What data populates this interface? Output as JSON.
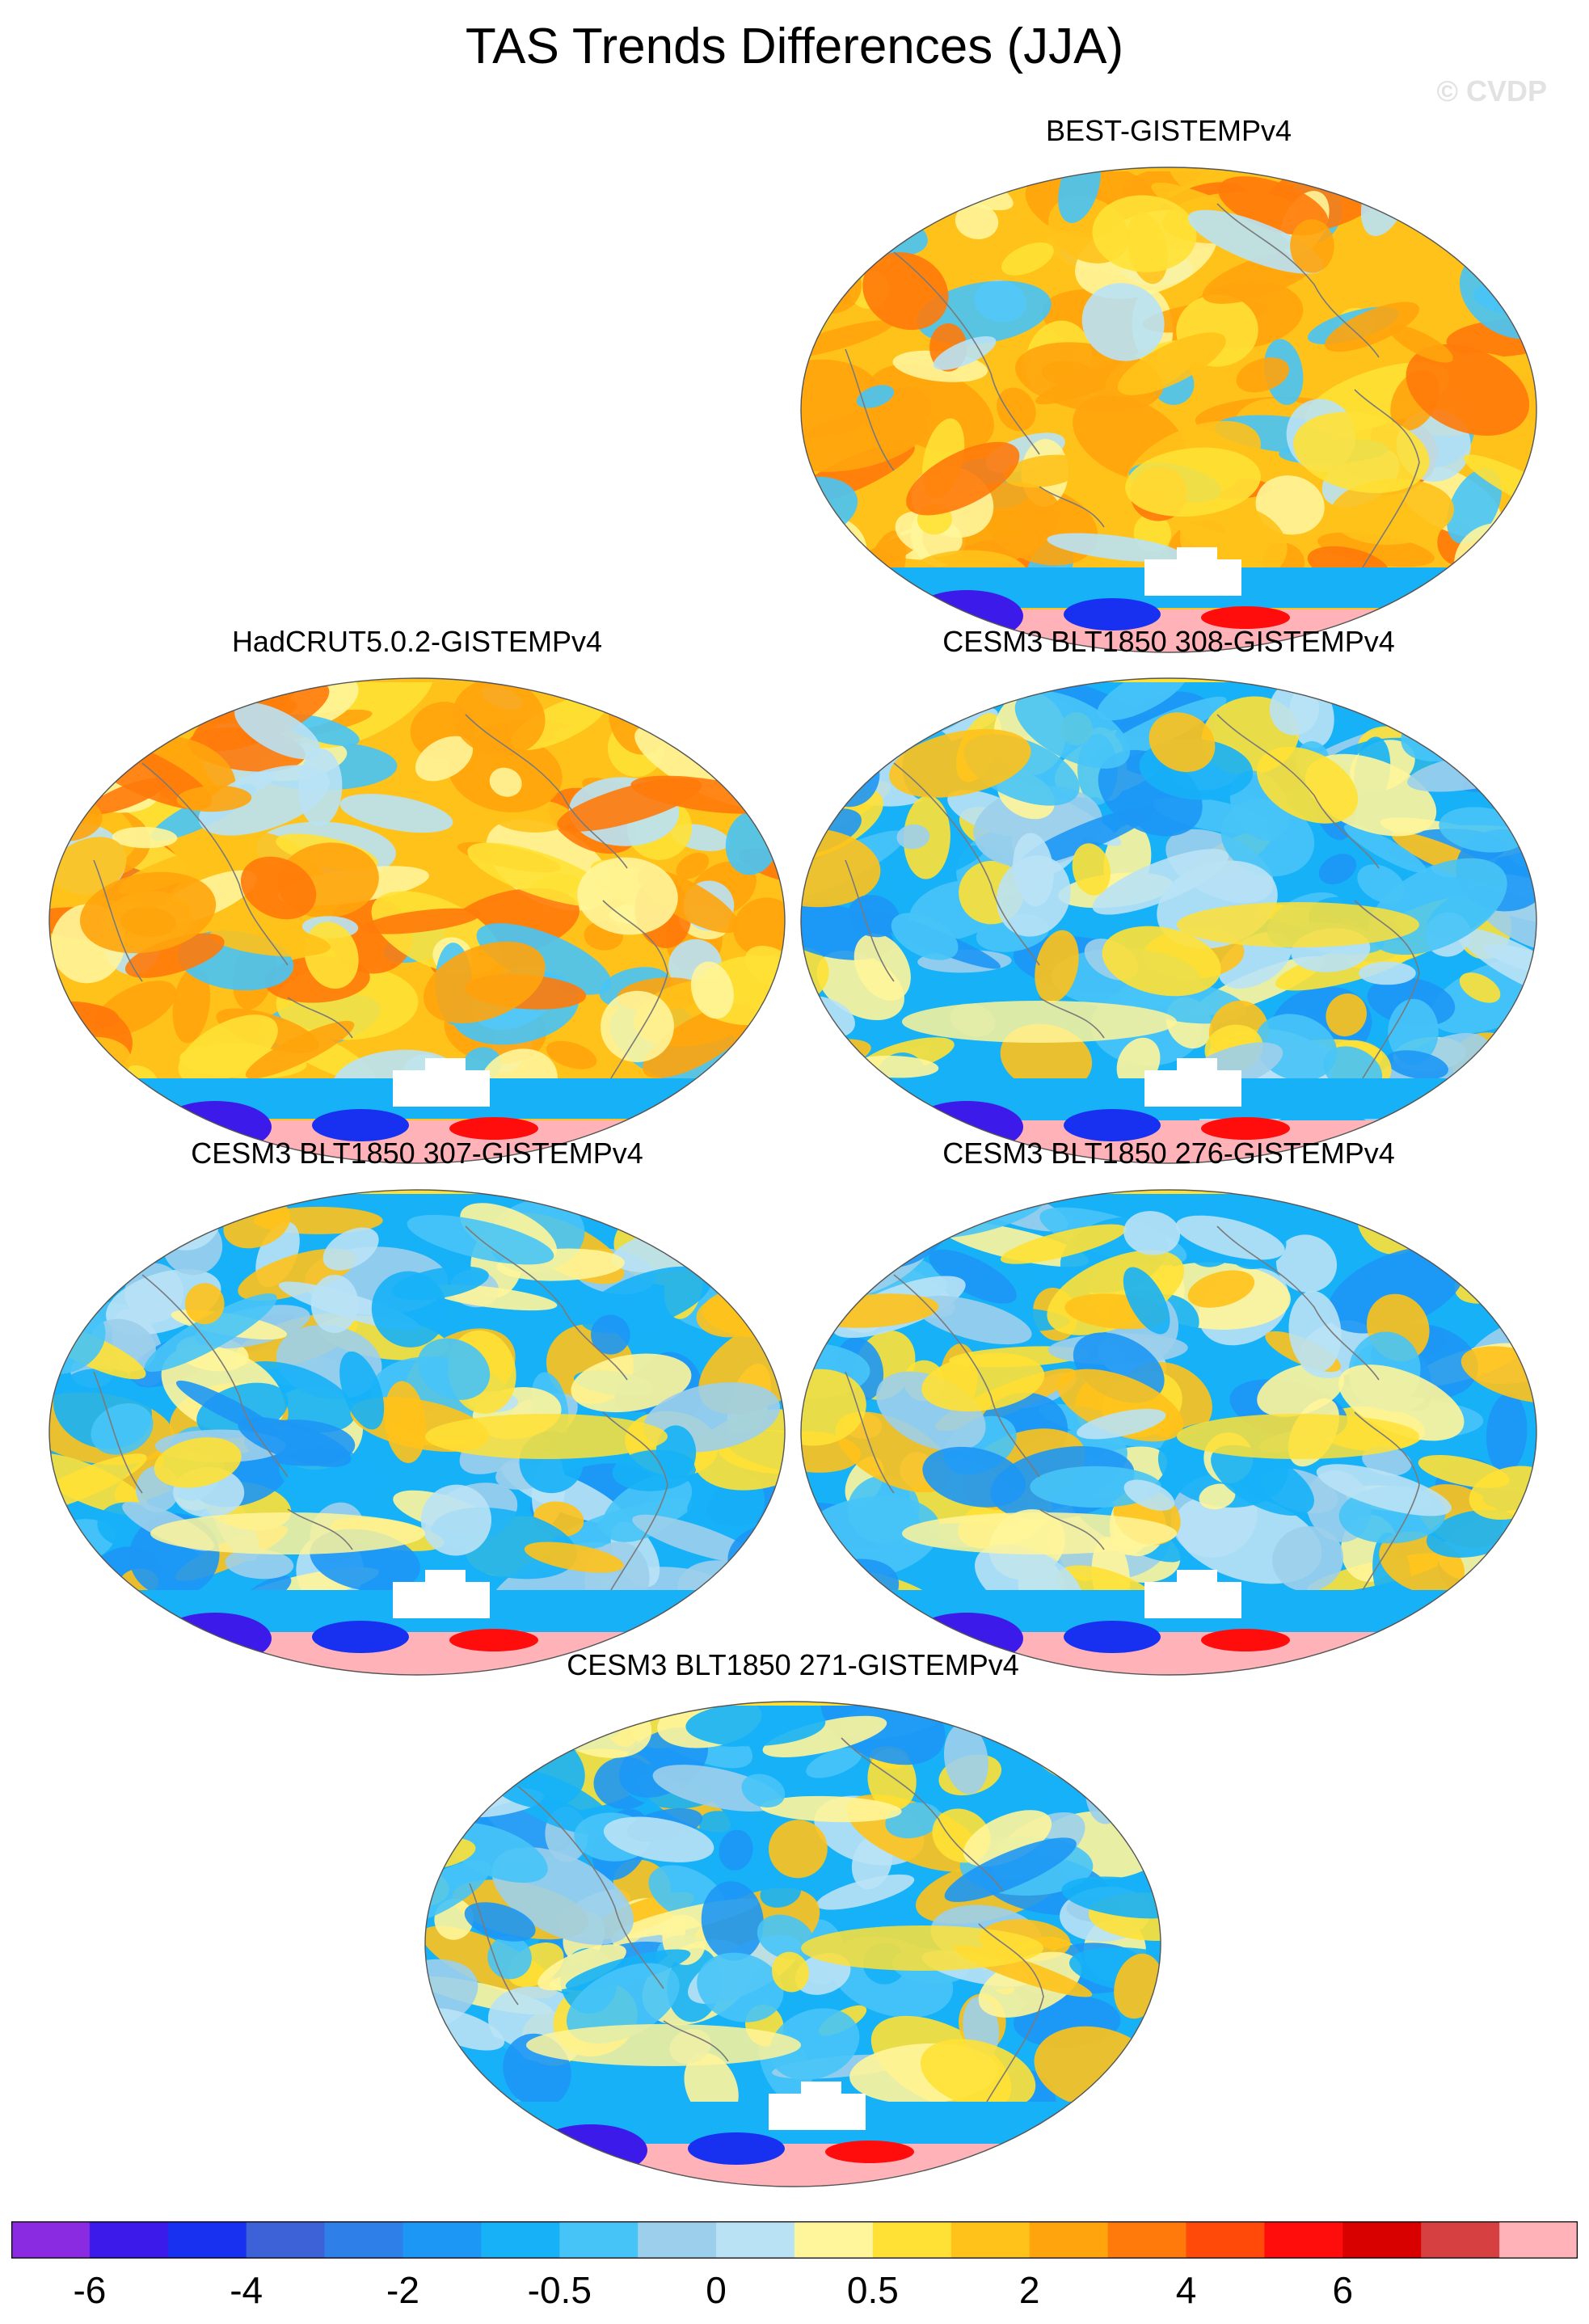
{
  "figure": {
    "title": "TAS Trends Differences (JJA)",
    "watermark": "© CVDP"
  },
  "panels": [
    {
      "label": "BEST-GISTEMPv4",
      "bias": "warm",
      "slot": 0
    },
    {
      "label": "HadCRUT5.0.2-GISTEMPv4",
      "bias": "warm",
      "slot": 1
    },
    {
      "label": "CESM3 BLT1850 308-GISTEMPv4",
      "bias": "cool",
      "slot": 2
    },
    {
      "label": "CESM3 BLT1850 307-GISTEMPv4",
      "bias": "cool",
      "slot": 3
    },
    {
      "label": "CESM3 BLT1850 276-GISTEMPv4",
      "bias": "cool",
      "slot": 4
    },
    {
      "label": "CESM3 BLT1850 271-GISTEMPv4",
      "bias": "cool",
      "slot": 5
    }
  ],
  "chart_data": {
    "type": "heatmap",
    "title": "TAS Trends Differences (JJA)",
    "projection": "Robinson global",
    "series_names": [
      "BEST-GISTEMPv4",
      "HadCRUT5.0.2-GISTEMPv4",
      "CESM3 BLT1850 308-GISTEMPv4",
      "CESM3 BLT1850 307-GISTEMPv4",
      "CESM3 BLT1850 276-GISTEMPv4",
      "CESM3 BLT1850 271-GISTEMPv4"
    ],
    "colorbar": {
      "levels": [
        -8,
        -6,
        -5,
        -4,
        -3,
        -2,
        -1,
        -0.5,
        -0.25,
        0,
        0.25,
        0.5,
        1,
        2,
        3,
        4,
        5,
        6,
        8
      ],
      "tick_labels": [
        "-6",
        "-4",
        "-2",
        "-0.5",
        "0",
        "0.5",
        "2",
        "4",
        "6"
      ],
      "tick_boundary_index": [
        1,
        3,
        5,
        7,
        9,
        11,
        13,
        15,
        17
      ],
      "colors": [
        "#8a2be2",
        "#3c1aea",
        "#1830f0",
        "#3d62d8",
        "#2f7fe8",
        "#1d97f5",
        "#16b1f7",
        "#47c4f7",
        "#9ccfeb",
        "#b9e2f5",
        "#fff59a",
        "#ffe135",
        "#ffc21a",
        "#ffa40c",
        "#ff7a0a",
        "#ff4a0a",
        "#ff0d0d",
        "#d90000",
        "#d64040",
        "#ffb2b8"
      ],
      "orientation": "horizontal",
      "placement": "bottom"
    }
  }
}
